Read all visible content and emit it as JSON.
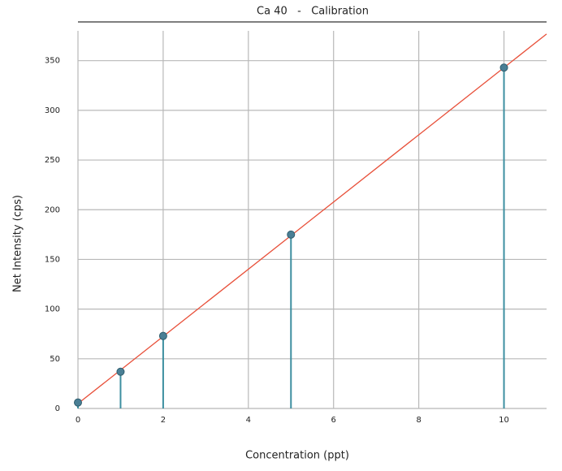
{
  "chart_data": {
    "type": "scatter",
    "title": "Ca 40   -   Calibration",
    "x_label": "Concentration (ppt)",
    "y_label": "Net Intensity (cps)",
    "xlim": [
      0,
      11
    ],
    "ylim": [
      0,
      380
    ],
    "xticks": [
      0,
      2,
      4,
      6,
      8,
      10
    ],
    "yticks": [
      0,
      50,
      100,
      150,
      200,
      250,
      300,
      350
    ],
    "grid": true,
    "series": [
      {
        "style": "stem",
        "color": "#3d8fa0",
        "x": [
          0,
          1,
          2,
          5,
          10
        ],
        "values": [
          6,
          37,
          73,
          175,
          343
        ]
      },
      {
        "style": "line",
        "color": "#e8503a",
        "x": [
          0,
          11
        ],
        "values": [
          4.9,
          376.8
        ]
      }
    ]
  }
}
